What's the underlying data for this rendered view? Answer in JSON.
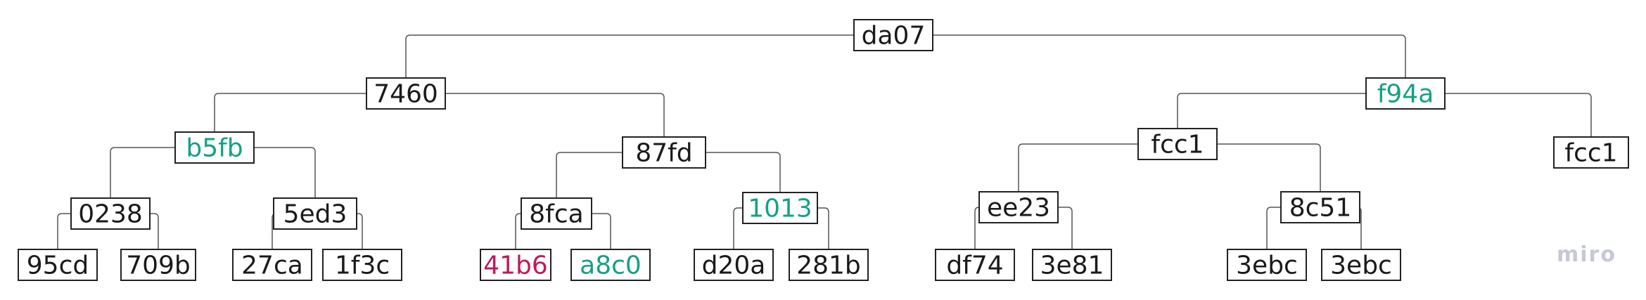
{
  "colors": {
    "default": "#1a1a1a",
    "green": "#16a085",
    "red": "#c2185b",
    "watermark": "#c6c8d6"
  },
  "watermark": "miro",
  "nodes": [
    {
      "id": "n0",
      "label": "da07",
      "color": "default"
    },
    {
      "id": "n1",
      "label": "7460",
      "color": "default",
      "parent": "n0"
    },
    {
      "id": "n2",
      "label": "f94a",
      "color": "green",
      "parent": "n0"
    },
    {
      "id": "n3",
      "label": "b5fb",
      "color": "green",
      "parent": "n1"
    },
    {
      "id": "n4",
      "label": "87fd",
      "color": "default",
      "parent": "n1"
    },
    {
      "id": "n5",
      "label": "fcc1",
      "color": "default",
      "parent": "n2"
    },
    {
      "id": "n6",
      "label": "fcc1",
      "color": "default",
      "parent": "n2"
    },
    {
      "id": "n7",
      "label": "0238",
      "color": "default",
      "parent": "n3"
    },
    {
      "id": "n8",
      "label": "5ed3",
      "color": "default",
      "parent": "n3"
    },
    {
      "id": "n9",
      "label": "8fca",
      "color": "default",
      "parent": "n4"
    },
    {
      "id": "n10",
      "label": "1013",
      "color": "green",
      "parent": "n4"
    },
    {
      "id": "n11",
      "label": "ee23",
      "color": "default",
      "parent": "n5"
    },
    {
      "id": "n12",
      "label": "8c51",
      "color": "default",
      "parent": "n5"
    },
    {
      "id": "n13",
      "label": "95cd",
      "color": "default",
      "parent": "n7"
    },
    {
      "id": "n14",
      "label": "709b",
      "color": "default",
      "parent": "n7"
    },
    {
      "id": "n15",
      "label": "27ca",
      "color": "default",
      "parent": "n8"
    },
    {
      "id": "n16",
      "label": "1f3c",
      "color": "default",
      "parent": "n8"
    },
    {
      "id": "n17",
      "label": "41b6",
      "color": "red",
      "parent": "n9"
    },
    {
      "id": "n18",
      "label": "a8c0",
      "color": "green",
      "parent": "n9"
    },
    {
      "id": "n19",
      "label": "d20a",
      "color": "default",
      "parent": "n10"
    },
    {
      "id": "n20",
      "label": "281b",
      "color": "default",
      "parent": "n10"
    },
    {
      "id": "n21",
      "label": "df74",
      "color": "default",
      "parent": "n11"
    },
    {
      "id": "n22",
      "label": "3e81",
      "color": "default",
      "parent": "n11"
    },
    {
      "id": "n23",
      "label": "3ebc",
      "color": "default",
      "parent": "n12"
    },
    {
      "id": "n24",
      "label": "3ebc",
      "color": "default",
      "parent": "n12"
    }
  ]
}
